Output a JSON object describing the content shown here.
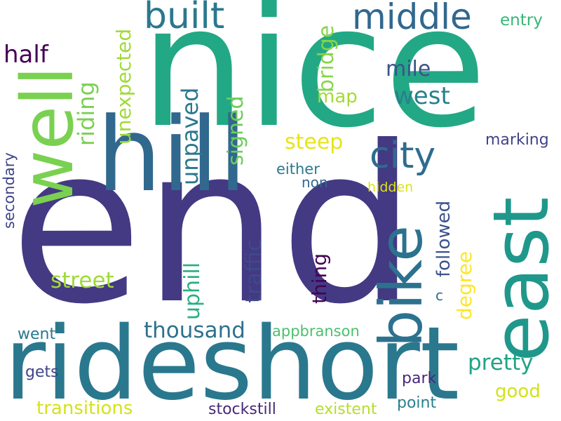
{
  "words": [
    {
      "text": "nice",
      "color": "#22a884"
    },
    {
      "text": "end",
      "color": "#443983"
    },
    {
      "text": "rideshort",
      "color": "#2a788e"
    },
    {
      "text": "well",
      "color": "#7ad151"
    },
    {
      "text": "hill",
      "color": "#31688e"
    },
    {
      "text": "east",
      "color": "#1f988b"
    },
    {
      "text": "bike",
      "color": "#2c728e"
    },
    {
      "text": "built",
      "color": "#2a788e"
    },
    {
      "text": "middle",
      "color": "#31688e"
    },
    {
      "text": "city",
      "color": "#2f6c8e"
    },
    {
      "text": "half",
      "color": "#440154"
    },
    {
      "text": "unexpected",
      "color": "#a0da39"
    },
    {
      "text": "riding",
      "color": "#7ad151"
    },
    {
      "text": "bridge",
      "color": "#86d549"
    },
    {
      "text": "mile",
      "color": "#3b528b"
    },
    {
      "text": "west",
      "color": "#27808e"
    },
    {
      "text": "map",
      "color": "#a5db36"
    },
    {
      "text": "entry",
      "color": "#35b779"
    },
    {
      "text": "unpaved",
      "color": "#2a788e"
    },
    {
      "text": "signed",
      "color": "#6ccd5a"
    },
    {
      "text": "steep",
      "color": "#e7e419"
    },
    {
      "text": "marking",
      "color": "#414487"
    },
    {
      "text": "either",
      "color": "#2a788e"
    },
    {
      "text": "non",
      "color": "#31688e"
    },
    {
      "text": "hidden",
      "color": "#dde318"
    },
    {
      "text": "secondary",
      "color": "#414487"
    },
    {
      "text": "followed",
      "color": "#3b528b"
    },
    {
      "text": "traffic",
      "color": "#3e4a89"
    },
    {
      "text": "uphill",
      "color": "#29af7f"
    },
    {
      "text": "thing",
      "color": "#440154"
    },
    {
      "text": "degree",
      "color": "#fde725"
    },
    {
      "text": "street",
      "color": "#a0da39"
    },
    {
      "text": "c",
      "color": "#2d708e"
    },
    {
      "text": "thousand",
      "color": "#2c728e"
    },
    {
      "text": "pretty",
      "color": "#20a386"
    },
    {
      "text": "went",
      "color": "#2a788e"
    },
    {
      "text": "appbranson",
      "color": "#4ac16d"
    },
    {
      "text": "gets",
      "color": "#414487"
    },
    {
      "text": "good",
      "color": "#d2e21b"
    },
    {
      "text": "park",
      "color": "#482878"
    },
    {
      "text": "transitions",
      "color": "#d5e21a"
    },
    {
      "text": "stockstill",
      "color": "#482878"
    },
    {
      "text": "existent",
      "color": "#b5de2b"
    },
    {
      "text": "point",
      "color": "#27808e"
    }
  ]
}
